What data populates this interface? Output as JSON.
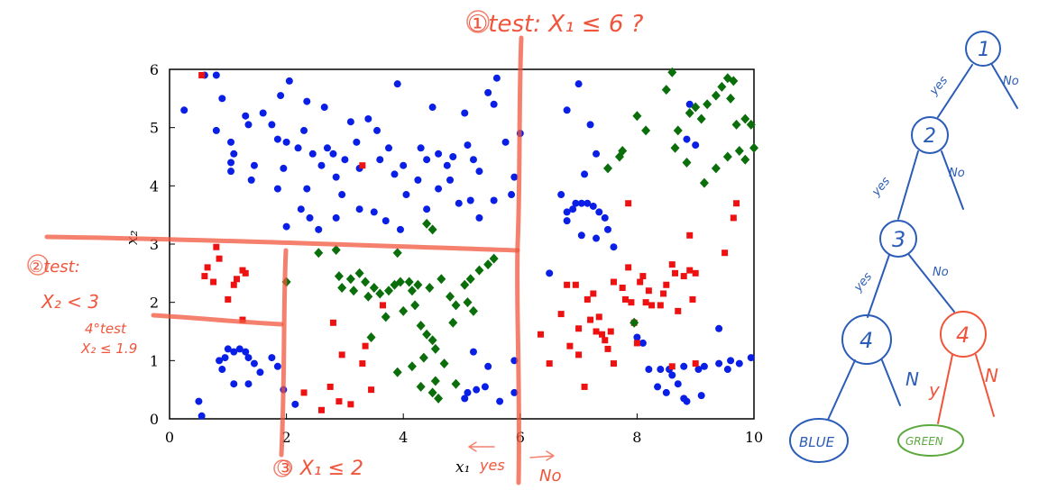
{
  "chart_data": {
    "type": "scatter",
    "xlabel": "x₁",
    "ylabel": "x₂",
    "xlim": [
      0,
      10
    ],
    "ylim": [
      0,
      6
    ],
    "xticks": [
      "0",
      "2",
      "4",
      "6",
      "8",
      "10"
    ],
    "yticks": [
      "0",
      "1",
      "2",
      "3",
      "4",
      "5",
      "6"
    ],
    "grid": false,
    "colors": {
      "blue": "#0a1fe6",
      "red": "#ee1111",
      "green": "#0a6e0a",
      "annotation": "#f0553c",
      "tree": "#2a5cb8",
      "tree_green": "#5aa83c"
    },
    "series": [
      {
        "marker": "circle",
        "color": "blue",
        "points": [
          [
            0.25,
            5.3
          ],
          [
            0.6,
            5.9
          ],
          [
            0.8,
            4.95
          ],
          [
            0.9,
            5.5
          ],
          [
            1.05,
            4.75
          ],
          [
            1.1,
            4.55
          ],
          [
            1.05,
            4.25
          ],
          [
            1.3,
            5.2
          ],
          [
            1.35,
            5.05
          ],
          [
            1.4,
            4.1
          ],
          [
            1.45,
            4.35
          ],
          [
            1.6,
            5.25
          ],
          [
            1.75,
            5.05
          ],
          [
            1.85,
            4.8
          ],
          [
            1.9,
            5.55
          ],
          [
            1.95,
            4.3
          ],
          [
            2.0,
            4.75
          ],
          [
            2.05,
            5.8
          ],
          [
            1.85,
            3.95
          ],
          [
            2.2,
            4.65
          ],
          [
            2.3,
            4.95
          ],
          [
            2.35,
            5.45
          ],
          [
            2.45,
            4.55
          ],
          [
            2.6,
            4.35
          ],
          [
            2.65,
            5.35
          ],
          [
            2.7,
            4.65
          ],
          [
            2.8,
            4.55
          ],
          [
            2.85,
            4.15
          ],
          [
            3.0,
            4.45
          ],
          [
            3.1,
            5.1
          ],
          [
            3.2,
            4.75
          ],
          [
            3.25,
            4.3
          ],
          [
            3.4,
            5.15
          ],
          [
            3.55,
            4.95
          ],
          [
            3.75,
            4.65
          ],
          [
            3.9,
            5.75
          ],
          [
            3.6,
            4.45
          ],
          [
            3.85,
            4.2
          ],
          [
            4.0,
            4.35
          ],
          [
            4.25,
            4.1
          ],
          [
            4.3,
            4.65
          ],
          [
            4.4,
            4.45
          ],
          [
            4.5,
            5.35
          ],
          [
            4.6,
            4.55
          ],
          [
            4.75,
            4.35
          ],
          [
            4.8,
            4.1
          ],
          [
            4.85,
            4.5
          ],
          [
            5.05,
            5.25
          ],
          [
            5.1,
            4.7
          ],
          [
            5.2,
            4.45
          ],
          [
            5.3,
            4.25
          ],
          [
            5.45,
            5.6
          ],
          [
            5.55,
            5.4
          ],
          [
            5.6,
            5.85
          ],
          [
            5.75,
            4.75
          ],
          [
            5.9,
            4.15
          ],
          [
            6.0,
            4.9
          ],
          [
            4.05,
            3.85
          ],
          [
            4.4,
            3.6
          ],
          [
            4.6,
            3.95
          ],
          [
            4.95,
            3.7
          ],
          [
            5.15,
            3.75
          ],
          [
            5.3,
            3.45
          ],
          [
            5.55,
            3.75
          ],
          [
            5.85,
            3.85
          ],
          [
            2.0,
            3.3
          ],
          [
            2.25,
            3.6
          ],
          [
            2.4,
            3.45
          ],
          [
            2.55,
            3.25
          ],
          [
            2.85,
            3.45
          ],
          [
            2.95,
            3.85
          ],
          [
            3.25,
            3.6
          ],
          [
            3.5,
            3.55
          ],
          [
            3.7,
            3.4
          ],
          [
            3.95,
            3.25
          ],
          [
            0.8,
            5.9
          ],
          [
            1.05,
            4.4
          ],
          [
            2.35,
            3.95
          ],
          [
            0.5,
            0.3
          ],
          [
            0.55,
            0.05
          ],
          [
            0.85,
            1.0
          ],
          [
            0.9,
            0.85
          ],
          [
            0.95,
            1.05
          ],
          [
            1.0,
            1.2
          ],
          [
            1.1,
            1.15
          ],
          [
            1.2,
            1.2
          ],
          [
            1.3,
            1.15
          ],
          [
            1.35,
            1.05
          ],
          [
            1.45,
            0.95
          ],
          [
            1.55,
            0.8
          ],
          [
            1.35,
            0.6
          ],
          [
            1.1,
            0.6
          ],
          [
            1.75,
            1.05
          ],
          [
            1.85,
            0.9
          ],
          [
            1.95,
            0.5
          ],
          [
            2.15,
            0.25
          ],
          [
            5.1,
            0.45
          ],
          [
            5.25,
            0.5
          ],
          [
            5.05,
            0.35
          ],
          [
            5.45,
            0.9
          ],
          [
            5.4,
            0.55
          ],
          [
            5.65,
            0.3
          ],
          [
            5.9,
            0.45
          ],
          [
            5.9,
            1.0
          ],
          [
            5.2,
            1.15
          ],
          [
            6.5,
            2.5
          ],
          [
            6.8,
            3.55
          ],
          [
            6.8,
            3.4
          ],
          [
            6.9,
            3.6
          ],
          [
            6.95,
            3.7
          ],
          [
            7.05,
            3.7
          ],
          [
            7.15,
            3.7
          ],
          [
            7.25,
            3.65
          ],
          [
            7.35,
            3.55
          ],
          [
            7.45,
            3.45
          ],
          [
            7.5,
            3.25
          ],
          [
            7.3,
            3.1
          ],
          [
            7.05,
            3.15
          ],
          [
            7.6,
            2.95
          ],
          [
            6.7,
            3.85
          ],
          [
            7.1,
            4.2
          ],
          [
            6.8,
            5.3
          ],
          [
            7.2,
            5.05
          ],
          [
            7.0,
            5.75
          ],
          [
            7.3,
            4.55
          ],
          [
            8.9,
            5.4
          ],
          [
            8.85,
            4.8
          ],
          [
            9.0,
            4.7
          ],
          [
            8.0,
            1.4
          ],
          [
            8.1,
            1.3
          ],
          [
            8.2,
            0.85
          ],
          [
            8.4,
            0.85
          ],
          [
            8.35,
            0.55
          ],
          [
            8.5,
            0.45
          ],
          [
            8.55,
            0.85
          ],
          [
            8.6,
            0.75
          ],
          [
            8.7,
            0.6
          ],
          [
            8.8,
            0.9
          ],
          [
            8.85,
            0.3
          ],
          [
            9.05,
            0.85
          ],
          [
            9.15,
            0.9
          ],
          [
            9.4,
            0.95
          ],
          [
            9.55,
            0.85
          ],
          [
            9.6,
            1.0
          ],
          [
            9.75,
            0.95
          ],
          [
            9.95,
            1.05
          ],
          [
            8.8,
            0.35
          ],
          [
            9.4,
            1.55
          ],
          [
            9.1,
            0.4
          ]
        ]
      },
      {
        "marker": "square",
        "color": "red",
        "points": [
          [
            0.55,
            5.9
          ],
          [
            3.3,
            4.35
          ],
          [
            0.6,
            2.45
          ],
          [
            0.65,
            2.6
          ],
          [
            0.75,
            2.35
          ],
          [
            0.8,
            2.95
          ],
          [
            0.85,
            2.75
          ],
          [
            1.0,
            2.05
          ],
          [
            1.1,
            2.3
          ],
          [
            1.15,
            2.4
          ],
          [
            1.25,
            2.55
          ],
          [
            1.3,
            2.5
          ],
          [
            1.25,
            1.7
          ],
          [
            2.3,
            0.45
          ],
          [
            2.6,
            0.15
          ],
          [
            2.75,
            0.55
          ],
          [
            2.8,
            1.65
          ],
          [
            2.9,
            0.3
          ],
          [
            2.95,
            1.1
          ],
          [
            3.1,
            0.25
          ],
          [
            3.3,
            0.95
          ],
          [
            3.35,
            1.25
          ],
          [
            3.45,
            0.5
          ],
          [
            3.65,
            1.95
          ],
          [
            6.35,
            1.45
          ],
          [
            6.5,
            0.95
          ],
          [
            6.7,
            1.8
          ],
          [
            6.8,
            2.3
          ],
          [
            6.85,
            1.25
          ],
          [
            7.0,
            1.55
          ],
          [
            7.1,
            0.55
          ],
          [
            7.15,
            2.05
          ],
          [
            7.2,
            1.7
          ],
          [
            7.25,
            2.15
          ],
          [
            7.3,
            1.5
          ],
          [
            7.35,
            1.75
          ],
          [
            7.4,
            1.45
          ],
          [
            7.45,
            1.35
          ],
          [
            7.5,
            1.2
          ],
          [
            7.55,
            1.5
          ],
          [
            7.6,
            2.35
          ],
          [
            7.75,
            2.25
          ],
          [
            7.8,
            2.05
          ],
          [
            7.85,
            2.6
          ],
          [
            7.9,
            2.0
          ],
          [
            7.95,
            1.65
          ],
          [
            8.05,
            2.35
          ],
          [
            8.1,
            2.45
          ],
          [
            8.15,
            2.0
          ],
          [
            8.2,
            2.2
          ],
          [
            8.25,
            1.95
          ],
          [
            8.4,
            1.95
          ],
          [
            8.45,
            2.15
          ],
          [
            8.5,
            2.3
          ],
          [
            8.6,
            2.65
          ],
          [
            8.65,
            2.5
          ],
          [
            8.7,
            1.85
          ],
          [
            8.8,
            2.45
          ],
          [
            8.9,
            2.55
          ],
          [
            9.0,
            2.5
          ],
          [
            8.95,
            2.05
          ],
          [
            9.5,
            2.85
          ],
          [
            9.65,
            3.45
          ],
          [
            9.7,
            3.7
          ],
          [
            7.0,
            1.1
          ],
          [
            8.0,
            1.3
          ],
          [
            7.85,
            3.7
          ],
          [
            8.9,
            3.15
          ],
          [
            6.95,
            2.3
          ],
          [
            7.6,
            0.95
          ],
          [
            9.0,
            0.95
          ],
          [
            8.6,
            0.9
          ]
        ]
      },
      {
        "marker": "diamond",
        "color": "green",
        "points": [
          [
            2.0,
            2.35
          ],
          [
            2.55,
            2.85
          ],
          [
            2.85,
            2.9
          ],
          [
            2.9,
            2.45
          ],
          [
            2.95,
            2.25
          ],
          [
            3.1,
            2.4
          ],
          [
            3.15,
            2.2
          ],
          [
            3.25,
            2.5
          ],
          [
            3.35,
            2.35
          ],
          [
            3.4,
            2.1
          ],
          [
            3.5,
            2.25
          ],
          [
            3.6,
            2.15
          ],
          [
            3.7,
            1.75
          ],
          [
            3.75,
            2.2
          ],
          [
            3.85,
            2.3
          ],
          [
            3.9,
            2.85
          ],
          [
            3.95,
            2.35
          ],
          [
            4.0,
            1.85
          ],
          [
            4.1,
            2.35
          ],
          [
            4.15,
            2.2
          ],
          [
            4.2,
            1.95
          ],
          [
            4.25,
            2.3
          ],
          [
            4.3,
            1.6
          ],
          [
            4.4,
            1.45
          ],
          [
            4.45,
            2.25
          ],
          [
            4.5,
            1.35
          ],
          [
            4.35,
            1.05
          ],
          [
            4.55,
            1.2
          ],
          [
            4.65,
            2.4
          ],
          [
            4.7,
            0.95
          ],
          [
            4.8,
            2.1
          ],
          [
            4.85,
            1.65
          ],
          [
            4.9,
            1.95
          ],
          [
            5.05,
            2.3
          ],
          [
            5.15,
            2.4
          ],
          [
            5.3,
            2.55
          ],
          [
            5.45,
            2.65
          ],
          [
            5.55,
            2.75
          ],
          [
            4.4,
            3.35
          ],
          [
            4.5,
            3.25
          ],
          [
            5.1,
            2.0
          ],
          [
            5.2,
            1.85
          ],
          [
            3.45,
            1.4
          ],
          [
            3.9,
            0.8
          ],
          [
            4.15,
            0.9
          ],
          [
            4.3,
            0.55
          ],
          [
            4.5,
            0.45
          ],
          [
            4.6,
            0.35
          ],
          [
            4.9,
            0.6
          ],
          [
            4.55,
            0.65
          ],
          [
            8.0,
            5.2
          ],
          [
            8.15,
            4.95
          ],
          [
            8.5,
            5.65
          ],
          [
            8.6,
            5.95
          ],
          [
            8.9,
            5.25
          ],
          [
            9.0,
            5.35
          ],
          [
            9.1,
            5.15
          ],
          [
            9.2,
            5.4
          ],
          [
            9.35,
            5.55
          ],
          [
            9.45,
            5.7
          ],
          [
            9.55,
            5.85
          ],
          [
            9.6,
            5.5
          ],
          [
            9.65,
            5.8
          ],
          [
            9.7,
            5.05
          ],
          [
            9.75,
            4.6
          ],
          [
            9.85,
            5.15
          ],
          [
            9.95,
            5.05
          ],
          [
            10.0,
            4.65
          ],
          [
            9.55,
            4.5
          ],
          [
            9.35,
            4.3
          ],
          [
            9.15,
            4.05
          ],
          [
            8.85,
            4.4
          ],
          [
            8.7,
            4.95
          ],
          [
            7.5,
            4.3
          ],
          [
            7.7,
            4.5
          ],
          [
            7.75,
            4.6
          ],
          [
            8.65,
            4.65
          ],
          [
            7.95,
            1.65
          ],
          [
            9.85,
            4.45
          ]
        ]
      }
    ],
    "annotations": {
      "test1": "①test: X₁ ≤ 6 ?",
      "test2_head": "②test:",
      "test2_cond": "X₂ < 3",
      "test4_head": "4°test",
      "test4_cond": "X₂ ≤ 1.9",
      "test3": "③ X₁ ≤ 2",
      "yes_arrow": "yes",
      "no_arrow": "No"
    }
  },
  "tree": {
    "nodes": [
      "1",
      "2",
      "3",
      "4",
      "4"
    ],
    "edges": {
      "yes": "yes",
      "no": "No",
      "y": "y",
      "n": "N"
    },
    "leaves": {
      "blue": "BLUE",
      "green": "GREEN"
    }
  }
}
